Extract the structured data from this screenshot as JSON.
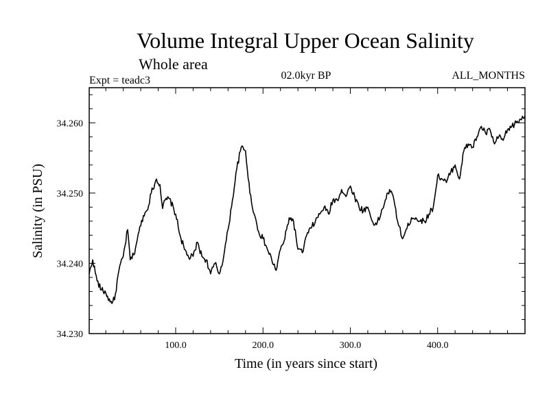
{
  "chart_data": {
    "type": "line",
    "title": "Volume Integral Upper Ocean Salinity",
    "subtitle": "Whole area",
    "experiment": "Expt = teadc3",
    "period": "02.0kyr BP",
    "months": "ALL_MONTHS",
    "xlabel": "Time (in years since start)",
    "ylabel": "Salinity (in PSU)",
    "xlim": [
      1,
      500
    ],
    "ylim": [
      34.23,
      34.265
    ],
    "xticks": [
      100,
      200,
      300,
      400
    ],
    "xtick_labels": [
      "100.0",
      "200.0",
      "300.0",
      "400.0"
    ],
    "yticks": [
      34.23,
      34.24,
      34.25,
      34.26
    ],
    "ytick_labels": [
      "34.230",
      "34.240",
      "34.250",
      "34.260"
    ],
    "series": [
      {
        "name": "Salinity",
        "x": [
          1,
          5,
          10,
          15,
          20,
          25,
          30,
          35,
          40,
          45,
          48,
          52,
          58,
          63,
          67,
          72,
          78,
          82,
          85,
          88,
          93,
          100,
          105,
          110,
          115,
          120,
          125,
          130,
          135,
          140,
          145,
          150,
          155,
          160,
          165,
          170,
          175,
          180,
          185,
          190,
          195,
          200,
          205,
          210,
          215,
          220,
          225,
          230,
          235,
          240,
          245,
          250,
          255,
          260,
          265,
          270,
          275,
          280,
          285,
          290,
          295,
          300,
          305,
          310,
          315,
          320,
          325,
          330,
          335,
          340,
          345,
          350,
          355,
          360,
          365,
          370,
          375,
          380,
          385,
          390,
          395,
          400,
          405,
          410,
          415,
          420,
          425,
          430,
          435,
          440,
          445,
          450,
          455,
          460,
          465,
          470,
          475,
          480,
          485,
          490,
          495,
          500
        ],
        "values": [
          34.2385,
          34.2405,
          34.2375,
          34.2362,
          34.2358,
          34.2345,
          34.2348,
          34.239,
          34.241,
          34.2448,
          34.2405,
          34.2412,
          34.2445,
          34.2468,
          34.2475,
          34.25,
          34.252,
          34.2512,
          34.2478,
          34.249,
          34.2492,
          34.247,
          34.244,
          34.242,
          34.2408,
          34.241,
          34.243,
          34.241,
          34.2405,
          34.2385,
          34.24,
          34.2385,
          34.241,
          34.2448,
          34.249,
          34.2535,
          34.2565,
          34.256,
          34.25,
          34.247,
          34.2445,
          34.2435,
          34.242,
          34.2405,
          34.239,
          34.242,
          34.2435,
          34.2465,
          34.246,
          34.242,
          34.2415,
          34.244,
          34.245,
          34.246,
          34.247,
          34.248,
          34.247,
          34.249,
          34.249,
          34.2505,
          34.2495,
          34.251,
          34.2495,
          34.248,
          34.2475,
          34.248,
          34.246,
          34.2455,
          34.247,
          34.249,
          34.2505,
          34.249,
          34.2455,
          34.2435,
          34.245,
          34.2465,
          34.2465,
          34.246,
          34.246,
          34.247,
          34.248,
          34.2525,
          34.252,
          34.2515,
          34.253,
          34.254,
          34.252,
          34.256,
          34.257,
          34.2565,
          34.258,
          34.2595,
          34.2585,
          34.259,
          34.257,
          34.258,
          34.2575,
          34.259,
          34.2595,
          34.26,
          34.2605,
          34.261
        ]
      }
    ]
  }
}
